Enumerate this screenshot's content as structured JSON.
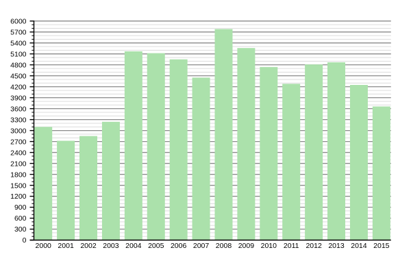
{
  "chart_data": {
    "type": "bar",
    "title": "",
    "xlabel": "",
    "ylabel": "",
    "categories": [
      "2000",
      "2001",
      "2002",
      "2003",
      "2004",
      "2005",
      "2006",
      "2007",
      "2008",
      "2009",
      "2010",
      "2011",
      "2012",
      "2013",
      "2014",
      "2015"
    ],
    "values": [
      3100,
      2720,
      2850,
      3240,
      5170,
      5120,
      4950,
      4450,
      5780,
      5260,
      4740,
      4280,
      4810,
      4870,
      4250,
      3660
    ],
    "ylim": [
      0,
      6000
    ],
    "y_major_step": 300,
    "y_minor_step": 100,
    "y_tick_labels": [
      "0",
      "300",
      "600",
      "900",
      "1200",
      "1500",
      "1800",
      "2100",
      "2400",
      "2700",
      "3000",
      "3300",
      "3600",
      "3900",
      "4200",
      "4500",
      "4800",
      "5100",
      "5400",
      "5700",
      "6000"
    ],
    "grid": true,
    "legend": false,
    "colors": {
      "background": "#ffffff",
      "bar_fill": "#abe1ab",
      "major_gridline": "#8a8a8a",
      "minor_gridline": "#dcdcdc",
      "axis": "#000000",
      "label_text": "#000000"
    }
  }
}
